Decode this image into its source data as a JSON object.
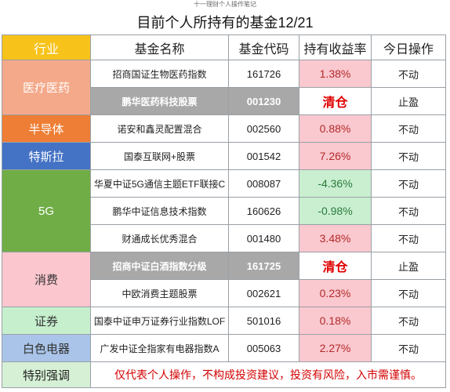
{
  "header_watermark": "十一理财个人操作笔记",
  "title": "目前个人所持有的基金12/21",
  "columns": [
    "行业",
    "基金名称",
    "基金代码",
    "持有收益率",
    "今日操作"
  ],
  "colors": {
    "header_industry": "#f7c21a",
    "medical": "#f4a98a",
    "semiconductor": "#ee7e35",
    "tesla": "#4472c4",
    "fiveg": "#70ad47",
    "consumer": "#fbc6ce",
    "securities": "#c6efce",
    "appliance": "#a9c4e8",
    "gray_row": "#a8a8a8",
    "positive_bg": "#fac8cf",
    "negative_bg": "#c9efd0"
  },
  "industries": {
    "medical": "医疗医药",
    "semiconductor": "半导体",
    "tesla": "特斯拉",
    "fiveg": "5G",
    "consumer": "消费",
    "securities": "证券",
    "appliance": "白色电器"
  },
  "rows": [
    {
      "name": "招商国证生物医药指数",
      "code": "161726",
      "return": "1.38%",
      "op": "不动"
    },
    {
      "name": "鹏华医药科技股票",
      "code": "001230",
      "return": "清仓",
      "op": "止盈"
    },
    {
      "name": "诺安和鑫灵配置混合",
      "code": "002560",
      "return": "0.88%",
      "op": "不动"
    },
    {
      "name": "国泰互联网+股票",
      "code": "001542",
      "return": "7.26%",
      "op": "不动"
    },
    {
      "name": "华夏中证5G通信主题ETF联接C",
      "code": "008087",
      "return": "-4.36%",
      "op": "不动"
    },
    {
      "name": "鹏华中证信息技术指数",
      "code": "160626",
      "return": "-0.98%",
      "op": "不动"
    },
    {
      "name": "财通成长优秀混合",
      "code": "001480",
      "return": "3.48%",
      "op": "不动"
    },
    {
      "name": "招商中证白酒指数分级",
      "code": "161725",
      "return": "清仓",
      "op": "止盈"
    },
    {
      "name": "中欧消费主题股票",
      "code": "002621",
      "return": "0.23%",
      "op": "不动"
    },
    {
      "name": "国泰中证申万证券行业指数LOF",
      "code": "501016",
      "return": "0.18%",
      "op": "不动"
    },
    {
      "name": "广发中证全指家有电器指数A",
      "code": "005063",
      "return": "2.27%",
      "op": "不动"
    }
  ],
  "note": {
    "label": "特别强调",
    "text": "仅代表个人操作，不构成投资建议，投资有风险，入市需谨慎。"
  }
}
